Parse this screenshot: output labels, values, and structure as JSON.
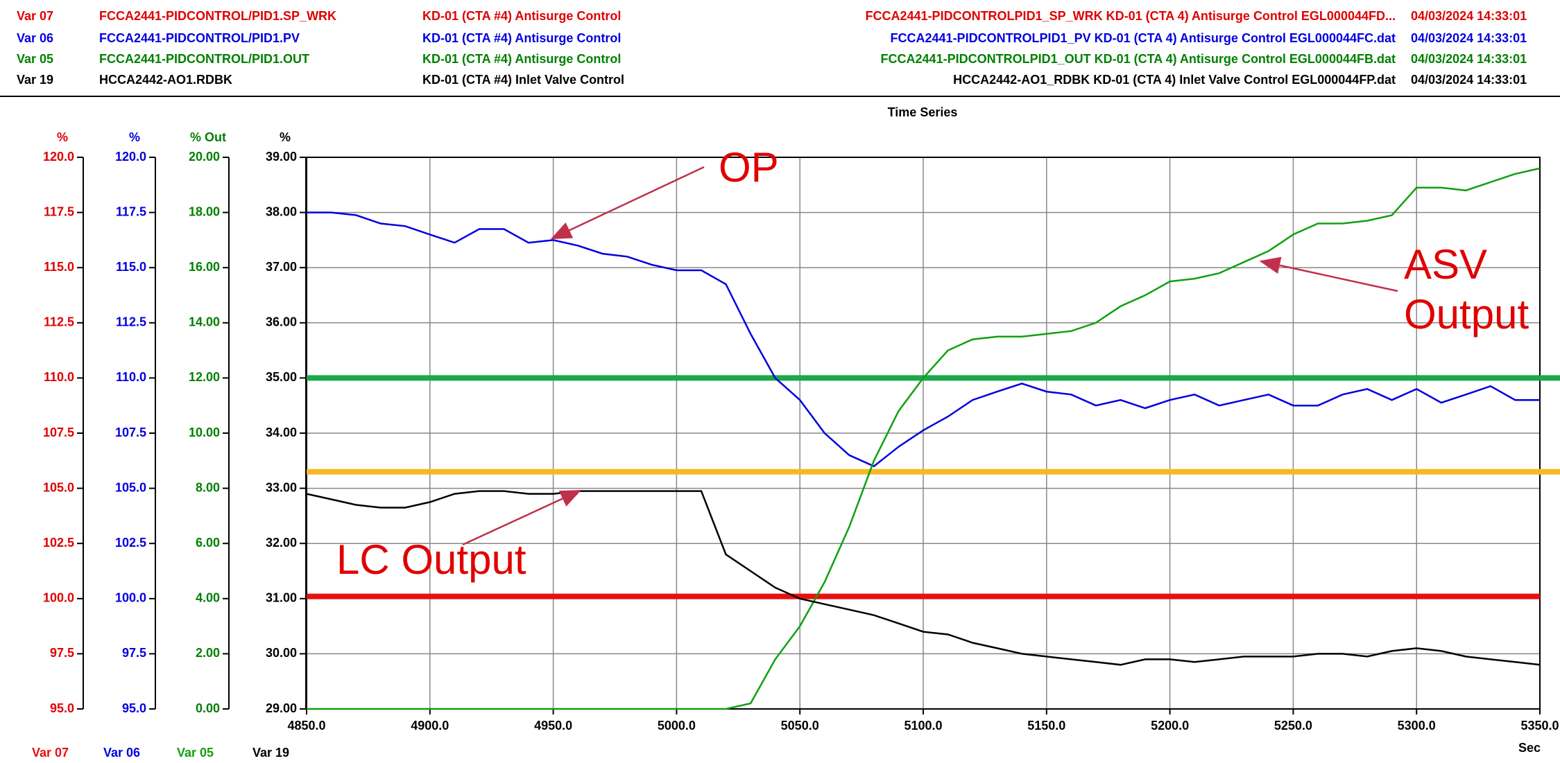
{
  "chart_data": {
    "type": "line",
    "title": "Time Series",
    "legend_table": [
      {
        "color": "#e00000",
        "cells": [
          "Var 07",
          "FCCA2441-PIDCONTROL/PID1.SP_WRK",
          "KD-01 (CTA #4) Antisurge Control",
          "FCCA2441-PIDCONTROLPID1_SP_WRK KD-01 (CTA 4) Antisurge Control EGL000044FD...",
          "04/03/2024 14:33:01"
        ]
      },
      {
        "color": "#0000e0",
        "cells": [
          "Var 06",
          "FCCA2441-PIDCONTROL/PID1.PV",
          "KD-01 (CTA #4) Antisurge Control",
          "FCCA2441-PIDCONTROLPID1_PV KD-01 (CTA 4) Antisurge Control EGL000044FC.dat",
          "04/03/2024 14:33:01"
        ]
      },
      {
        "color": "#008000",
        "cells": [
          "Var 05",
          "FCCA2441-PIDCONTROL/PID1.OUT",
          "KD-01 (CTA #4) Antisurge Control",
          "FCCA2441-PIDCONTROLPID1_OUT KD-01 (CTA 4) Antisurge Control EGL000044FB.dat",
          "04/03/2024 14:33:01"
        ]
      },
      {
        "color": "#000000",
        "cells": [
          "Var 19",
          "HCCA2442-AO1.RDBK",
          "KD-01 (CTA #4) Inlet Valve Control",
          "HCCA2442-AO1_RDBK KD-01 (CTA 4) Inlet Valve Control EGL000044FP.dat",
          "04/03/2024 14:33:01"
        ]
      }
    ],
    "xlabel": "Sec",
    "xlim": [
      4850,
      5350
    ],
    "xticks": [
      {
        "value": 4850,
        "label": "4850.0"
      },
      {
        "value": 4900,
        "label": "4900.0"
      },
      {
        "value": 4950,
        "label": "4950.0"
      },
      {
        "value": 5000,
        "label": "5000.0"
      },
      {
        "value": 5050,
        "label": "5050.0"
      },
      {
        "value": 5100,
        "label": "5100.0"
      },
      {
        "value": 5150,
        "label": "5150.0"
      },
      {
        "value": 5200,
        "label": "5200.0"
      },
      {
        "value": 5250,
        "label": "5250.0"
      },
      {
        "value": 5300,
        "label": "5300.0"
      },
      {
        "value": 5350,
        "label": "5350.0"
      }
    ],
    "grid": true,
    "y_axes": [
      {
        "label": "%",
        "color": "#e00000",
        "ylim": [
          95,
          120
        ],
        "yticks": [
          {
            "value": 95,
            "label": "95.0"
          },
          97.5,
          {
            "value": 100,
            "label": "100.0"
          },
          102.5,
          {
            "value": 105,
            "label": "105.0"
          },
          107.5,
          {
            "value": 110,
            "label": "110.0"
          },
          112.5,
          {
            "value": 115,
            "label": "115.0"
          },
          117.5,
          {
            "value": 120,
            "label": "120.0"
          }
        ]
      },
      {
        "label": "%",
        "color": "#0000e0",
        "ylim": [
          95,
          120
        ],
        "yticks": [
          {
            "value": 95,
            "label": "95.0"
          },
          97.5,
          {
            "value": 100,
            "label": "100.0"
          },
          102.5,
          {
            "value": 105,
            "label": "105.0"
          },
          107.5,
          {
            "value": 110,
            "label": "110.0"
          },
          112.5,
          {
            "value": 115,
            "label": "115.0"
          },
          117.5,
          {
            "value": 120,
            "label": "120.0"
          }
        ]
      },
      {
        "label": "% Out",
        "color": "#008000",
        "ylim": [
          0,
          20
        ],
        "yticks": [
          {
            "value": 0,
            "label": "0.00"
          },
          {
            "value": 2,
            "label": "2.00"
          },
          {
            "value": 4,
            "label": "4.00"
          },
          {
            "value": 6,
            "label": "6.00"
          },
          {
            "value": 8,
            "label": "8.00"
          },
          {
            "value": 10,
            "label": "10.00"
          },
          {
            "value": 12,
            "label": "12.00"
          },
          {
            "value": 14,
            "label": "14.00"
          },
          {
            "value": 16,
            "label": "16.00"
          },
          {
            "value": 18,
            "label": "18.00"
          },
          {
            "value": 20,
            "label": "20.00"
          }
        ]
      },
      {
        "label": "%",
        "color": "#000000",
        "ylim": [
          29,
          39
        ],
        "yticks": [
          {
            "value": 29,
            "label": "29.00"
          },
          {
            "value": 30,
            "label": "30.00"
          },
          {
            "value": 31,
            "label": "31.00"
          },
          {
            "value": 32,
            "label": "32.00"
          },
          {
            "value": 33,
            "label": "33.00"
          },
          {
            "value": 34,
            "label": "34.00"
          },
          {
            "value": 35,
            "label": "35.00"
          },
          {
            "value": 36,
            "label": "36.00"
          },
          {
            "value": 37,
            "label": "37.00"
          },
          {
            "value": 38,
            "label": "38.00"
          },
          {
            "value": 39,
            "label": "39.00"
          }
        ]
      }
    ],
    "x": [
      4850,
      4860,
      4870,
      4880,
      4890,
      4900,
      4910,
      4920,
      4930,
      4940,
      4950,
      4960,
      4970,
      4980,
      4990,
      5000,
      5010,
      5020,
      5030,
      5040,
      5050,
      5060,
      5070,
      5080,
      5090,
      5100,
      5110,
      5120,
      5130,
      5140,
      5150,
      5160,
      5170,
      5180,
      5190,
      5200,
      5210,
      5220,
      5230,
      5240,
      5250,
      5260,
      5270,
      5280,
      5290,
      5300,
      5310,
      5320,
      5330,
      5340,
      5350
    ],
    "series": [
      {
        "name": "Var 07",
        "color": "#e81010",
        "axis": 0,
        "x": [
          4850,
          5350
        ],
        "values": [
          100.1,
          100.1
        ]
      },
      {
        "name": "Var 06",
        "color": "#0000e0",
        "axis": 1,
        "values": [
          117.5,
          117.5,
          117.38,
          117.0,
          116.88,
          116.5,
          116.13,
          116.75,
          116.75,
          116.13,
          116.25,
          116.0,
          115.63,
          115.5,
          115.13,
          114.88,
          114.88,
          114.25,
          112.0,
          110.0,
          109.0,
          107.5,
          106.5,
          106.0,
          106.88,
          107.63,
          108.25,
          109.0,
          109.38,
          109.75,
          109.38,
          109.25,
          108.75,
          109.0,
          108.63,
          109.0,
          109.25,
          108.75,
          109.0,
          109.25,
          108.75,
          108.75,
          109.25,
          109.5,
          109.0,
          109.5,
          108.88,
          109.25,
          109.63,
          109.0,
          109.0
        ]
      },
      {
        "name": "Var 05",
        "color": "#10a010",
        "axis": 2,
        "values": [
          0,
          0,
          0,
          0,
          0,
          0,
          0,
          0,
          0,
          0,
          0,
          0,
          0,
          0,
          0,
          0,
          0,
          0,
          0.2,
          1.8,
          3.0,
          4.6,
          6.6,
          9.0,
          10.8,
          12.0,
          13.0,
          13.4,
          13.5,
          13.5,
          13.6,
          13.7,
          14.0,
          14.6,
          15.0,
          15.5,
          15.6,
          15.8,
          16.2,
          16.6,
          17.2,
          17.6,
          17.6,
          17.7,
          17.9,
          18.9,
          18.9,
          18.8,
          19.1,
          19.4,
          19.6
        ]
      },
      {
        "name": "Var 19",
        "color": "#000000",
        "axis": 3,
        "values": [
          32.9,
          32.8,
          32.7,
          32.65,
          32.65,
          32.75,
          32.9,
          32.95,
          32.95,
          32.9,
          32.9,
          32.95,
          32.95,
          32.95,
          32.95,
          32.95,
          32.95,
          31.8,
          31.5,
          31.2,
          31.0,
          30.9,
          30.8,
          30.7,
          30.55,
          30.4,
          30.35,
          30.2,
          30.1,
          30.0,
          29.95,
          29.9,
          29.85,
          29.8,
          29.9,
          29.9,
          29.85,
          29.9,
          29.95,
          29.95,
          29.95,
          30.0,
          30.0,
          29.95,
          30.05,
          30.1,
          30.05,
          29.95,
          29.9,
          29.85,
          29.8
        ]
      }
    ],
    "reference_lines": [
      {
        "axis": 3,
        "value": 35.0,
        "color": "#1aa84a"
      },
      {
        "axis": 3,
        "value": 33.3,
        "color": "#f5b923"
      }
    ],
    "annotations": [
      "OP",
      "ASV Output",
      "LC Output"
    ]
  }
}
